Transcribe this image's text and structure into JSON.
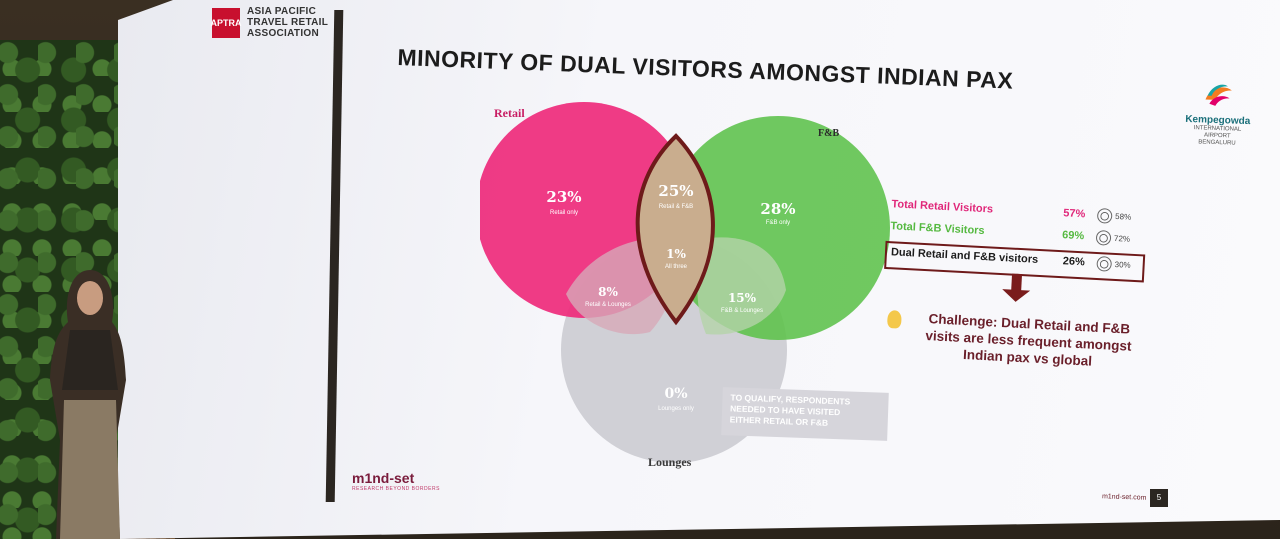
{
  "header": {
    "org_logo_mark": "APTRA",
    "org_line1": "ASIA PACIFIC",
    "org_line2": "TRAVEL RETAIL",
    "org_line3": "ASSOCIATION"
  },
  "slide": {
    "title": "MINORITY OF DUAL VISITORS AMONGST INDIAN PAX",
    "airport_logo": {
      "name": "Kempegowda",
      "sub1": "INTERNATIONAL",
      "sub2": "AIRPORT",
      "sub3": "BENGALURU"
    },
    "page_number": "5",
    "footer_url": "m1nd-set.com",
    "brand": {
      "name": "m1nd-set",
      "tagline": "RESEARCH BEYOND BORDERS"
    }
  },
  "venn": {
    "circle_labels": {
      "retail": "Retail",
      "fnb": "F&B",
      "lounges": "Lounges"
    },
    "regions": [
      {
        "id": "retail_only",
        "value": "23%",
        "label": "Retail only"
      },
      {
        "id": "retail_fnb",
        "value": "25%",
        "label": "Retail & F&B"
      },
      {
        "id": "fnb_only",
        "value": "28%",
        "label": "F&B only"
      },
      {
        "id": "all_three",
        "value": "1%",
        "label": "All three"
      },
      {
        "id": "retail_lounges",
        "value": "8%",
        "label": "Retail & Lounges"
      },
      {
        "id": "fnb_lounges",
        "value": "15%",
        "label": "F&B & Lounges"
      },
      {
        "id": "lounges_only",
        "value": "0%",
        "label": "Lounges only"
      }
    ],
    "colors": {
      "retail": "#ee2a7b",
      "fnb": "#5cc24a",
      "lounges": "#c9c9cf",
      "highlight": "#6e1a1a"
    }
  },
  "stats": {
    "rows": [
      {
        "label": "Total Retail Visitors",
        "value": "57%",
        "global": "58%",
        "color": "#e0287a"
      },
      {
        "label": "Total F&B Visitors",
        "value": "69%",
        "global": "72%",
        "color": "#55b940"
      },
      {
        "label": "Dual Retail and F&B visitors",
        "value": "26%",
        "global": "30%",
        "color": "#1c1c1c"
      }
    ]
  },
  "challenge": {
    "line1": "Challenge: Dual Retail and F&B",
    "line2": "visits are less frequent amongst",
    "line3": "Indian pax vs global"
  },
  "note": {
    "line1": "TO QUALIFY, RESPONDENTS",
    "line2": "NEEDED TO HAVE VISITED",
    "line3": "EITHER RETAIL OR F&B"
  }
}
